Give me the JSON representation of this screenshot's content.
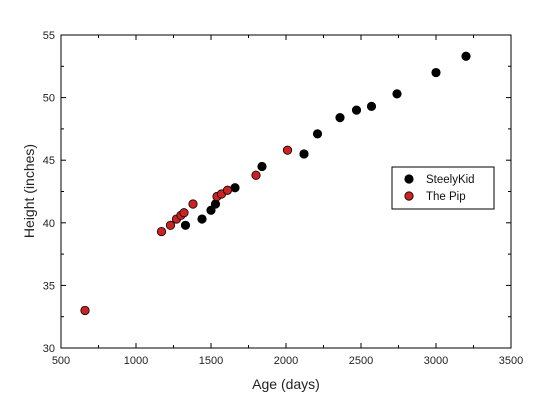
{
  "chart_data": {
    "type": "scatter",
    "title": "",
    "xlabel": "Age (days)",
    "ylabel": "Height (inches)",
    "xlim": [
      500,
      3500
    ],
    "ylim": [
      30,
      55
    ],
    "x_ticks": [
      500,
      1000,
      1500,
      2000,
      2500,
      3000,
      3500
    ],
    "y_ticks": [
      30,
      35,
      40,
      45,
      50,
      55
    ],
    "grid": false,
    "legend_position": "right",
    "series": [
      {
        "name": "SteelyKid",
        "color": "#000000",
        "points": [
          [
            1330,
            39.8
          ],
          [
            1440,
            40.3
          ],
          [
            1500,
            41.0
          ],
          [
            1530,
            41.5
          ],
          [
            1660,
            42.8
          ],
          [
            1840,
            44.5
          ],
          [
            2120,
            45.5
          ],
          [
            2210,
            47.1
          ],
          [
            2360,
            48.4
          ],
          [
            2470,
            49.0
          ],
          [
            2570,
            49.3
          ],
          [
            2740,
            50.3
          ],
          [
            3000,
            52.0
          ],
          [
            3200,
            53.3
          ]
        ]
      },
      {
        "name": "The Pip",
        "color": "#cc2222",
        "points": [
          [
            660,
            33.0
          ],
          [
            1170,
            39.3
          ],
          [
            1230,
            39.8
          ],
          [
            1270,
            40.3
          ],
          [
            1300,
            40.6
          ],
          [
            1320,
            40.8
          ],
          [
            1380,
            41.5
          ],
          [
            1540,
            42.1
          ],
          [
            1570,
            42.3
          ],
          [
            1610,
            42.6
          ],
          [
            1800,
            43.8
          ],
          [
            2010,
            45.8
          ]
        ]
      }
    ]
  }
}
